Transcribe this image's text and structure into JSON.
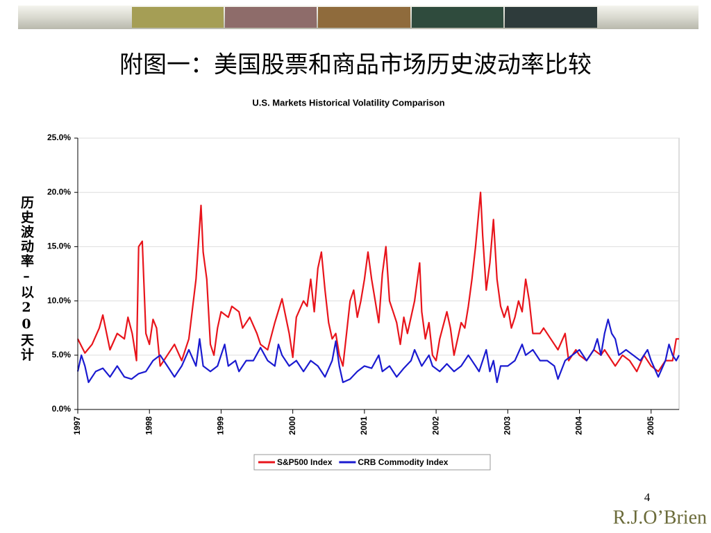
{
  "slide_title": "附图一：美国股票和商品市场历史波动率比较",
  "page_number": "4",
  "logo": "R.J.O’Brien",
  "chart_data": {
    "type": "line",
    "title": "U.S. Markets Historical Volatility Comparison",
    "y_label": "历史波动率–以20天计",
    "xlim": [
      1997,
      2005.39
    ],
    "xticks": [
      1997,
      1998,
      1999,
      2000,
      2001,
      2002,
      2003,
      2004,
      2005
    ],
    "ylim": [
      0,
      25
    ],
    "yticks": [
      {
        "value": 0,
        "label": "0.0%"
      },
      {
        "value": 5,
        "label": "5.0%"
      },
      {
        "value": 10,
        "label": "10.0%"
      },
      {
        "value": 15,
        "label": "15.0%"
      },
      {
        "value": 20,
        "label": "20.0%"
      },
      {
        "value": 25,
        "label": "25.0%"
      }
    ],
    "grid": true,
    "legend": "bottom",
    "series": [
      {
        "name": "S&P500 Index",
        "color": "#e8141b",
        "x": [
          1997.0,
          1997.1,
          1997.2,
          1997.3,
          1997.35,
          1997.45,
          1997.55,
          1997.65,
          1997.7,
          1997.76,
          1997.82,
          1997.85,
          1997.9,
          1997.95,
          1998.0,
          1998.05,
          1998.1,
          1998.15,
          1998.25,
          1998.35,
          1998.45,
          1998.55,
          1998.65,
          1998.72,
          1998.75,
          1998.8,
          1998.85,
          1998.9,
          1998.95,
          1999.0,
          1999.1,
          1999.15,
          1999.25,
          1999.3,
          1999.4,
          1999.5,
          1999.55,
          1999.65,
          1999.75,
          1999.85,
          1999.95,
          2000.0,
          2000.05,
          2000.15,
          2000.2,
          2000.25,
          2000.3,
          2000.35,
          2000.4,
          2000.45,
          2000.5,
          2000.55,
          2000.6,
          2000.65,
          2000.7,
          2000.75,
          2000.8,
          2000.85,
          2000.9,
          2000.95,
          2001.0,
          2001.05,
          2001.1,
          2001.15,
          2001.2,
          2001.25,
          2001.3,
          2001.35,
          2001.4,
          2001.45,
          2001.5,
          2001.55,
          2001.6,
          2001.7,
          2001.77,
          2001.8,
          2001.85,
          2001.9,
          2001.95,
          2002.0,
          2002.05,
          2002.15,
          2002.2,
          2002.25,
          2002.3,
          2002.35,
          2002.4,
          2002.45,
          2002.5,
          2002.55,
          2002.62,
          2002.65,
          2002.7,
          2002.75,
          2002.8,
          2002.85,
          2002.9,
          2002.95,
          2003.0,
          2003.05,
          2003.1,
          2003.15,
          2003.2,
          2003.25,
          2003.3,
          2003.35,
          2003.45,
          2003.5,
          2003.6,
          2003.7,
          2003.8,
          2003.85,
          2003.95,
          2004.0,
          2004.1,
          2004.2,
          2004.3,
          2004.35,
          2004.5,
          2004.6,
          2004.7,
          2004.8,
          2004.9,
          2005.0,
          2005.1,
          2005.2,
          2005.3,
          2005.35,
          2005.39
        ],
        "values": [
          6.5,
          5.2,
          6,
          7.5,
          8.7,
          5.5,
          7,
          6.5,
          8.5,
          7,
          4.5,
          15,
          15.5,
          7,
          6,
          8.3,
          7.5,
          4,
          5,
          6,
          4.5,
          6.5,
          12,
          18.8,
          14.5,
          12,
          6,
          5,
          7.5,
          9,
          8.5,
          9.5,
          9,
          7.5,
          8.5,
          7,
          6,
          5.5,
          8,
          10.2,
          7,
          4.8,
          8.5,
          10,
          9.5,
          12,
          9,
          13,
          14.5,
          11,
          8,
          6.5,
          7,
          5,
          4,
          7,
          10,
          11,
          8.5,
          10,
          12,
          14.5,
          12,
          10,
          8,
          12.5,
          15,
          10,
          9,
          8,
          6,
          8.5,
          7,
          10,
          13.5,
          9,
          6.5,
          8,
          5,
          4.5,
          6.5,
          9,
          7.5,
          5,
          6.5,
          8,
          7.5,
          9.5,
          12,
          15,
          20,
          16,
          11,
          13.5,
          17.5,
          12,
          9.5,
          8.5,
          9.5,
          7.5,
          8.5,
          10,
          9,
          12,
          10,
          7,
          7,
          7.5,
          6.5,
          5.5,
          7,
          4.5,
          5.5,
          5,
          4.5,
          5.5,
          5,
          5.5,
          4,
          5,
          4.5,
          3.5,
          5,
          4,
          3.5,
          4.5,
          4.5,
          6.5,
          6.5
        ]
      },
      {
        "name": "CRB Commodity Index",
        "color": "#1a1ad0",
        "x": [
          1997.0,
          1997.05,
          1997.1,
          1997.15,
          1997.25,
          1997.35,
          1997.45,
          1997.55,
          1997.65,
          1997.75,
          1997.85,
          1997.95,
          1998.05,
          1998.15,
          1998.25,
          1998.35,
          1998.45,
          1998.55,
          1998.65,
          1998.7,
          1998.75,
          1998.85,
          1998.95,
          1999.0,
          1999.05,
          1999.1,
          1999.2,
          1999.25,
          1999.35,
          1999.45,
          1999.55,
          1999.65,
          1999.75,
          1999.8,
          1999.85,
          1999.95,
          2000.05,
          2000.15,
          2000.25,
          2000.35,
          2000.45,
          2000.55,
          2000.6,
          2000.65,
          2000.7,
          2000.8,
          2000.9,
          2001.0,
          2001.1,
          2001.2,
          2001.25,
          2001.35,
          2001.45,
          2001.55,
          2001.65,
          2001.7,
          2001.8,
          2001.9,
          2001.95,
          2002.05,
          2002.15,
          2002.25,
          2002.35,
          2002.45,
          2002.55,
          2002.6,
          2002.7,
          2002.75,
          2002.8,
          2002.85,
          2002.9,
          2003.0,
          2003.1,
          2003.2,
          2003.25,
          2003.35,
          2003.45,
          2003.55,
          2003.65,
          2003.7,
          2003.8,
          2003.9,
          2004.0,
          2004.1,
          2004.2,
          2004.25,
          2004.3,
          2004.35,
          2004.4,
          2004.45,
          2004.5,
          2004.55,
          2004.65,
          2004.75,
          2004.85,
          2004.95,
          2005.0,
          2005.1,
          2005.2,
          2005.25,
          2005.3,
          2005.35,
          2005.39
        ],
        "values": [
          3.5,
          5,
          4,
          2.5,
          3.5,
          3.8,
          3,
          4,
          3,
          2.8,
          3.3,
          3.5,
          4.5,
          5,
          4,
          3,
          4,
          5.5,
          4,
          6.5,
          4,
          3.5,
          4,
          5,
          6,
          4,
          4.5,
          3.5,
          4.5,
          4.5,
          5.7,
          4.5,
          4,
          6,
          5,
          4,
          4.5,
          3.5,
          4.5,
          4,
          3,
          4.5,
          6.3,
          4,
          2.5,
          2.8,
          3.5,
          4,
          3.8,
          5,
          3.5,
          4,
          3,
          3.8,
          4.5,
          5.5,
          4,
          5,
          4,
          3.5,
          4.2,
          3.5,
          4,
          5,
          4,
          3.5,
          5.5,
          3.5,
          4.5,
          2.5,
          4,
          4,
          4.5,
          6,
          5,
          5.5,
          4.5,
          4.5,
          4,
          2.8,
          4.5,
          5,
          5.5,
          4.5,
          5.5,
          6.5,
          5,
          7,
          8.3,
          7,
          6.5,
          5,
          5.5,
          5,
          4.5,
          5.5,
          4.5,
          3,
          4.5,
          6,
          5,
          4.5,
          5
        ]
      }
    ]
  }
}
